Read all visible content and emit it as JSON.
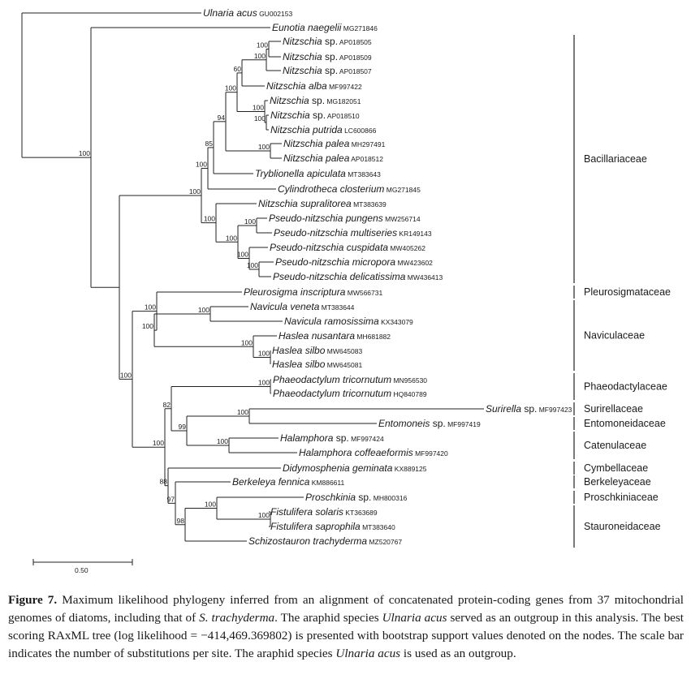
{
  "caption": {
    "label": "Figure 7.",
    "segments": [
      {
        "text": " Maximum likelihood phylogeny inferred from an alignment of concatenated protein-coding genes from 37 mitochondrial genomes of diatoms, including that of ",
        "italic": false
      },
      {
        "text": "S. trachyderma",
        "italic": true
      },
      {
        "text": ". The araphid species ",
        "italic": false
      },
      {
        "text": "Ulnaria acus",
        "italic": true
      },
      {
        "text": " served as an outgroup in this analysis. The best scoring RAxML tree (log likelihood = −414,469.369802) is presented with bootstrap support values denoted on the nodes. The scale bar indicates the number of substitutions per site. The araphid species ",
        "italic": false
      },
      {
        "text": "Ulnaria acus",
        "italic": true
      },
      {
        "text": " is used as an outgroup.",
        "italic": false
      }
    ]
  },
  "scale_bar": {
    "label": "0.50",
    "value": 0.5
  },
  "tree": {
    "leaves": [
      {
        "id": "ulnaria",
        "name": "Ulnaria acus",
        "sp": "",
        "acc": "GU002153"
      },
      {
        "id": "eunotia",
        "name": "Eunotia naegelii",
        "sp": "",
        "acc": "MG271846"
      },
      {
        "id": "nit505",
        "name": "Nitzschia",
        "sp": "sp.",
        "acc": "AP018505"
      },
      {
        "id": "nit509",
        "name": "Nitzschia",
        "sp": "sp.",
        "acc": "AP018509"
      },
      {
        "id": "nit507",
        "name": "Nitzschia",
        "sp": "sp.",
        "acc": "AP018507"
      },
      {
        "id": "nalba",
        "name": "Nitzschia alba",
        "sp": "",
        "acc": "MF997422"
      },
      {
        "id": "nit051",
        "name": "Nitzschia",
        "sp": "sp.",
        "acc": "MG182051"
      },
      {
        "id": "nit510",
        "name": "Nitzschia",
        "sp": "sp.",
        "acc": "AP018510"
      },
      {
        "id": "nputrida",
        "name": "Nitzschia putrida",
        "sp": "",
        "acc": "LC600866"
      },
      {
        "id": "npalea1",
        "name": "Nitzschia palea",
        "sp": "",
        "acc": "MH297491"
      },
      {
        "id": "npalea2",
        "name": "Nitzschia palea",
        "sp": "",
        "acc": "AP018512"
      },
      {
        "id": "tryb",
        "name": "Tryblionella apiculata",
        "sp": "",
        "acc": "MT383643"
      },
      {
        "id": "cylin",
        "name": "Cylindrotheca closterium",
        "sp": "",
        "acc": "MG271845"
      },
      {
        "id": "nsupra",
        "name": "Nitzschia supralitorea",
        "sp": "",
        "acc": "MT383639"
      },
      {
        "id": "ppung",
        "name": "Pseudo-nitzschia pungens",
        "sp": "",
        "acc": "MW256714"
      },
      {
        "id": "pmulti",
        "name": "Pseudo-nitzschia multiseries",
        "sp": "",
        "acc": "KR149143"
      },
      {
        "id": "pcusp",
        "name": "Pseudo-nitzschia cuspidata",
        "sp": "",
        "acc": "MW405262"
      },
      {
        "id": "pmicro",
        "name": "Pseudo-nitzschia micropora",
        "sp": "",
        "acc": "MW423602"
      },
      {
        "id": "pdelic",
        "name": "Pseudo-nitzschia delicatissima",
        "sp": "",
        "acc": "MW436413"
      },
      {
        "id": "pleuro",
        "name": "Pleurosigma inscriptura",
        "sp": "",
        "acc": "MW566731"
      },
      {
        "id": "nveneta",
        "name": "Navicula veneta",
        "sp": "",
        "acc": "MT383644"
      },
      {
        "id": "nramo",
        "name": "Navicula ramosissima",
        "sp": "",
        "acc": "KX343079"
      },
      {
        "id": "hnus",
        "name": "Haslea nusantara",
        "sp": "",
        "acc": "MH681882"
      },
      {
        "id": "hsilbo1",
        "name": "Haslea silbo",
        "sp": "",
        "acc": "MW645083"
      },
      {
        "id": "hsilbo2",
        "name": "Haslea silbo",
        "sp": "",
        "acc": "MW645081"
      },
      {
        "id": "ptri1",
        "name": "Phaeodactylum tricornutum",
        "sp": "",
        "acc": "MN956530"
      },
      {
        "id": "ptri2",
        "name": "Phaeodactylum tricornutum",
        "sp": "",
        "acc": "HQ840789"
      },
      {
        "id": "suri",
        "name": "Surirella",
        "sp": "sp.",
        "acc": "MF997423"
      },
      {
        "id": "ento",
        "name": "Entomoneis",
        "sp": "sp.",
        "acc": "MF997419"
      },
      {
        "id": "halsp",
        "name": "Halamphora",
        "sp": "sp.",
        "acc": "MF997424"
      },
      {
        "id": "halcof",
        "name": "Halamphora coffeaeformis",
        "sp": "",
        "acc": "MF997420"
      },
      {
        "id": "didy",
        "name": "Didymosphenia geminata",
        "sp": "",
        "acc": "KX889125"
      },
      {
        "id": "berk",
        "name": "Berkeleya fennica",
        "sp": "",
        "acc": "KM886611"
      },
      {
        "id": "prosch",
        "name": "Proschkinia",
        "sp": "sp.",
        "acc": "MH800316"
      },
      {
        "id": "fsol",
        "name": "Fistulifera solaris",
        "sp": "",
        "acc": "KT363689"
      },
      {
        "id": "fsap",
        "name": "Fistulifera saprophila",
        "sp": "",
        "acc": "MT383640"
      },
      {
        "id": "schizo",
        "name": "Schizostauron trachyderma",
        "sp": "",
        "acc": "MZ520767"
      }
    ],
    "support": [
      "100",
      "100",
      "60",
      "100",
      "100",
      "100",
      "94",
      "85",
      "100",
      "100",
      "100",
      "100",
      "100",
      "100",
      "100",
      "100",
      "100",
      "100",
      "100",
      "100",
      "100",
      "100",
      "82",
      "99",
      "100",
      "100",
      "88",
      "97",
      "100",
      "100",
      "98"
    ],
    "families": [
      {
        "name": "Bacillariaceae",
        "first": "nit505",
        "last": "pdelic"
      },
      {
        "name": "Pleurosigmataceae",
        "first": "pleuro",
        "last": "pleuro"
      },
      {
        "name": "Naviculaceae",
        "first": "nveneta",
        "last": "hsilbo2"
      },
      {
        "name": "Phaeodactylaceae",
        "first": "ptri1",
        "last": "ptri2"
      },
      {
        "name": "Surirellaceae",
        "first": "suri",
        "last": "suri"
      },
      {
        "name": "Entomoneidaceae",
        "first": "ento",
        "last": "ento"
      },
      {
        "name": "Catenulaceae",
        "first": "halsp",
        "last": "halcof"
      },
      {
        "name": "Cymbellaceae",
        "first": "didy",
        "last": "didy"
      },
      {
        "name": "Berkeleyaceae",
        "first": "berk",
        "last": "berk"
      },
      {
        "name": "Proschkiniaceae",
        "first": "prosch",
        "last": "prosch"
      },
      {
        "name": "Stauroneidaceae",
        "first": "fsol",
        "last": "schizo"
      }
    ]
  }
}
